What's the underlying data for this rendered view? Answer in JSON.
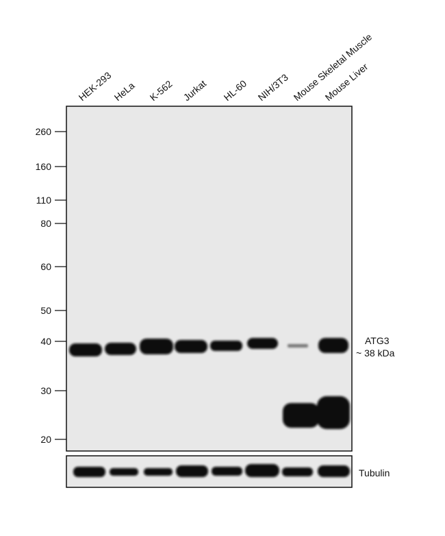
{
  "lanes": [
    "HEK-293",
    "HeLa",
    "K-562",
    "Jurkat",
    "HL-60",
    "NIH/3T3",
    "Mouse Skeletal Muscle",
    "Mouse Liver"
  ],
  "markers": [
    "260",
    "160",
    "110",
    "80",
    "60",
    "50",
    "40",
    "30",
    "20"
  ],
  "annotations": {
    "target": "ATG3",
    "size": "~ 38 kDa",
    "loading_control": "Tubulin"
  }
}
